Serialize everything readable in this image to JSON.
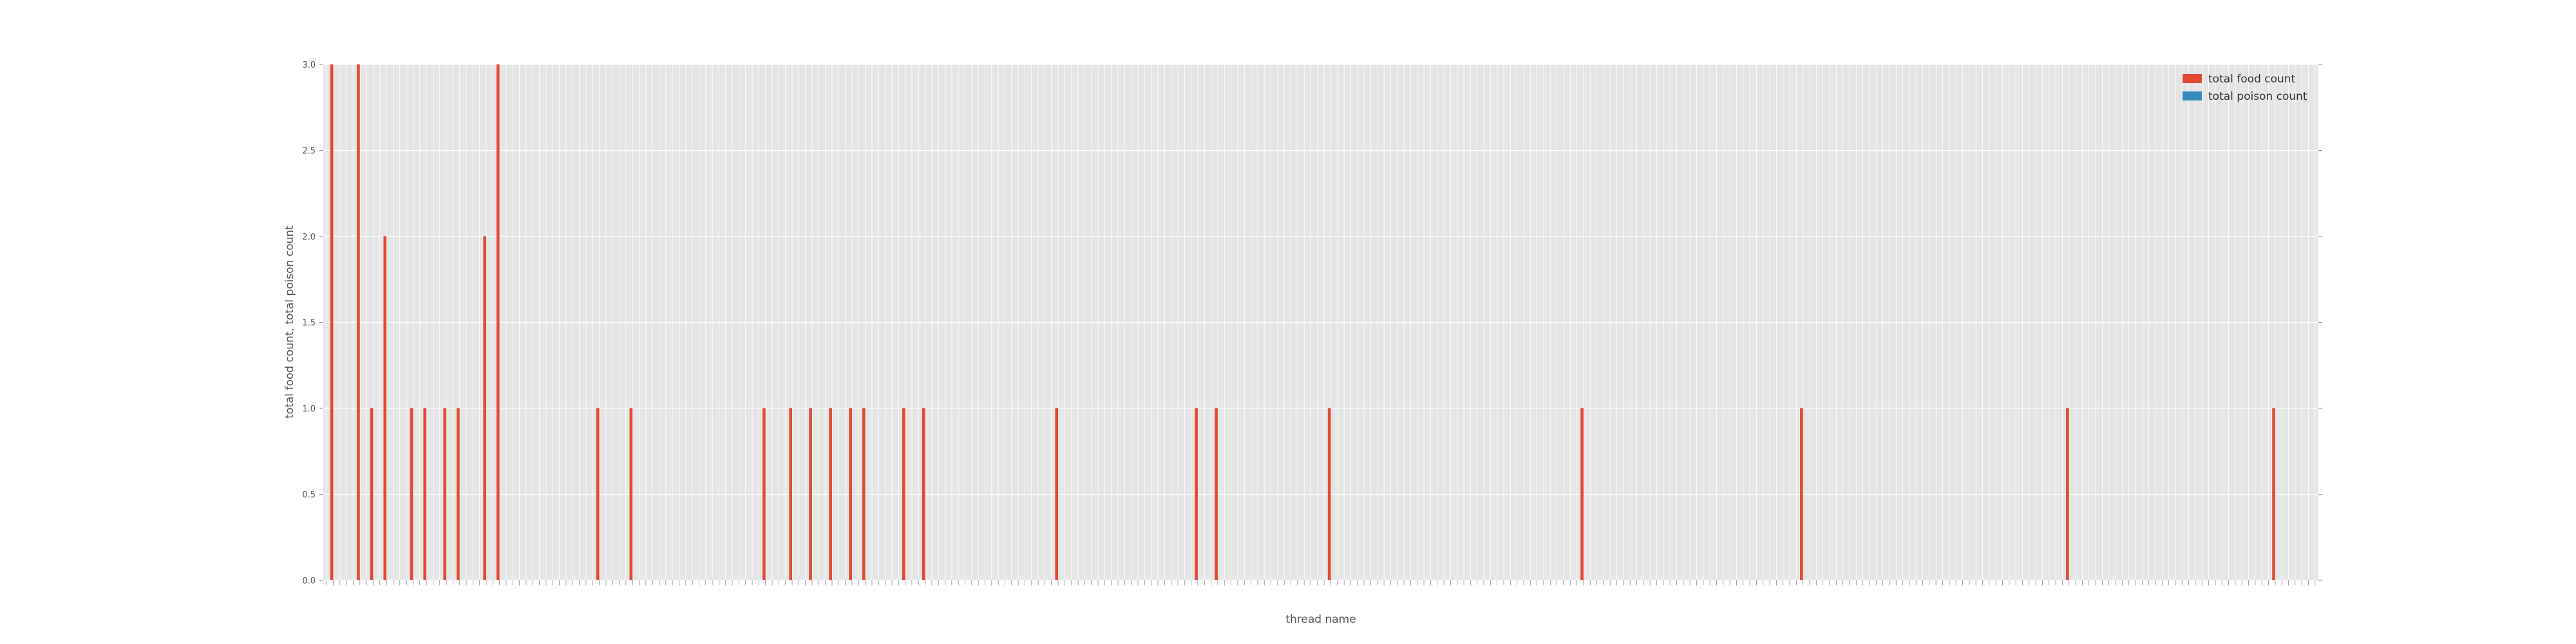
{
  "chart_data": {
    "type": "bar",
    "xlabel": "thread name",
    "ylabel": "total food count, total poison count",
    "ylim": [
      0,
      3
    ],
    "yticks": [
      "0.0",
      "0.5",
      "1.0",
      "1.5",
      "2.0",
      "2.5",
      "3.0"
    ],
    "grid": true,
    "legend_position": "top-right",
    "category_count": 300,
    "series": [
      {
        "name": "total food count",
        "color": "#e24a33",
        "values": [
          0,
          3,
          0,
          0,
          0,
          3,
          0,
          1,
          0,
          2,
          0,
          0,
          0,
          1,
          0,
          1,
          0,
          0,
          1,
          0,
          1,
          0,
          0,
          0,
          2,
          0,
          3,
          0,
          0,
          0,
          0,
          0,
          0,
          0,
          0,
          0,
          0,
          0,
          0,
          0,
          0,
          1,
          0,
          0,
          0,
          0,
          1,
          0,
          0,
          0,
          0,
          0,
          0,
          0,
          0,
          0,
          0,
          0,
          0,
          0,
          0,
          0,
          0,
          0,
          0,
          0,
          1,
          0,
          0,
          0,
          1,
          0,
          0,
          1,
          0,
          0,
          1,
          0,
          0,
          1,
          0,
          1,
          0,
          0,
          0,
          0,
          0,
          1,
          0,
          0,
          1,
          0,
          0,
          0,
          0,
          0,
          0,
          0,
          0,
          0,
          0,
          0,
          0,
          0,
          0,
          0,
          0,
          0,
          0,
          0,
          1,
          0,
          0,
          0,
          0,
          0,
          0,
          0,
          0,
          0,
          0,
          0,
          0,
          0,
          0,
          0,
          0,
          0,
          0,
          0,
          0,
          1,
          0,
          0,
          1,
          0,
          0,
          0,
          0,
          0,
          0,
          0,
          0,
          0,
          0,
          0,
          0,
          0,
          0,
          0,
          0,
          1,
          0,
          0,
          0,
          0,
          0,
          0,
          0,
          0,
          0,
          0,
          0,
          0,
          0,
          0,
          0,
          0,
          0,
          0,
          0,
          0,
          0,
          0,
          0,
          0,
          0,
          0,
          0,
          0,
          0,
          0,
          0,
          0,
          0,
          0,
          0,
          0,
          0,
          1,
          0,
          0,
          0,
          0,
          0,
          0,
          0,
          0,
          0,
          0,
          0,
          0,
          0,
          0,
          0,
          0,
          0,
          0,
          0,
          0,
          0,
          0,
          0,
          0,
          0,
          0,
          0,
          0,
          0,
          0,
          0,
          0,
          1,
          0,
          0,
          0,
          0,
          0,
          0,
          0,
          0,
          0,
          0,
          0,
          0,
          0,
          0,
          0,
          0,
          0,
          0,
          0,
          0,
          0,
          0,
          0,
          0,
          0,
          0,
          0,
          0,
          0,
          0,
          0,
          0,
          0,
          0,
          0,
          0,
          0,
          0,
          0,
          1,
          0,
          0,
          0,
          0,
          0,
          0,
          0,
          0,
          0,
          0,
          0,
          0,
          0,
          0,
          0,
          0,
          0,
          0,
          0,
          0,
          0,
          0,
          0,
          0,
          0,
          0,
          0,
          0,
          0,
          0,
          1,
          0,
          0,
          0,
          0,
          0,
          0,
          0,
          0,
          0,
          0,
          0,
          0,
          0,
          0
        ]
      },
      {
        "name": "total poison count",
        "color": "#348abd",
        "values": []
      }
    ]
  }
}
